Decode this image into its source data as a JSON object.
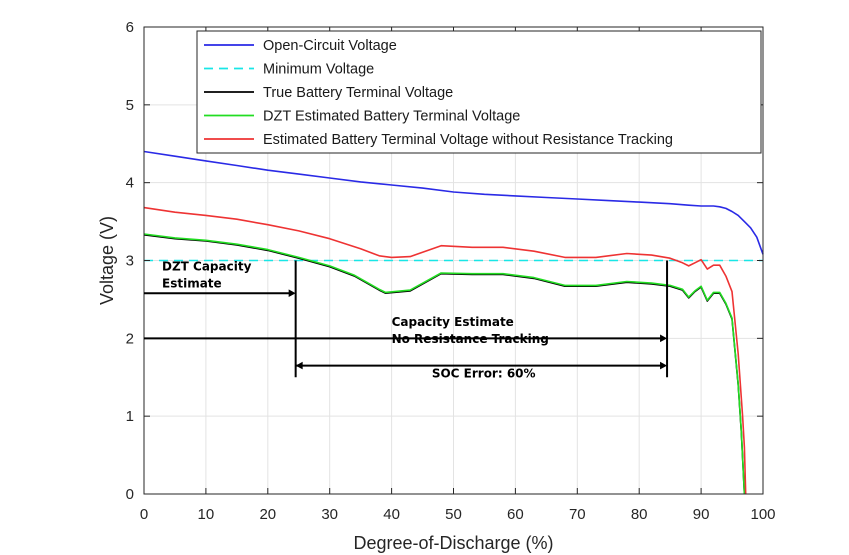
{
  "chart_data": {
    "type": "line",
    "title": "",
    "xlabel": "Degree-of-Discharge (%)",
    "ylabel": "Voltage (V)",
    "xlim": [
      0,
      100
    ],
    "ylim": [
      0,
      6
    ],
    "x_ticks": [
      "0",
      "10",
      "20",
      "30",
      "40",
      "50",
      "60",
      "70",
      "80",
      "90",
      "100"
    ],
    "y_ticks": [
      "0",
      "1",
      "2",
      "3",
      "4",
      "5",
      "6"
    ],
    "grid": true,
    "legend_position": "top-right",
    "series": [
      {
        "name": "Open-Circuit Voltage",
        "color": "#2a2ae6",
        "style": "solid",
        "points": [
          [
            0,
            4.4
          ],
          [
            5,
            4.34
          ],
          [
            10,
            4.28
          ],
          [
            15,
            4.22
          ],
          [
            20,
            4.16
          ],
          [
            25,
            4.11
          ],
          [
            30,
            4.06
          ],
          [
            35,
            4.01
          ],
          [
            40,
            3.97
          ],
          [
            45,
            3.93
          ],
          [
            50,
            3.88
          ],
          [
            55,
            3.85
          ],
          [
            60,
            3.83
          ],
          [
            65,
            3.81
          ],
          [
            70,
            3.79
          ],
          [
            75,
            3.77
          ],
          [
            80,
            3.75
          ],
          [
            85,
            3.73
          ],
          [
            88,
            3.71
          ],
          [
            90,
            3.7
          ],
          [
            92,
            3.7
          ],
          [
            93,
            3.69
          ],
          [
            94,
            3.67
          ],
          [
            95,
            3.63
          ],
          [
            96,
            3.58
          ],
          [
            97,
            3.5
          ],
          [
            98,
            3.42
          ],
          [
            99,
            3.3
          ],
          [
            100,
            3.08
          ]
        ]
      },
      {
        "name": "Minimum Voltage",
        "color": "#19e6e6",
        "style": "dashed",
        "points": [
          [
            0,
            3.0
          ],
          [
            100,
            3.0
          ]
        ]
      },
      {
        "name": "True Battery Terminal Voltage",
        "color": "#000000",
        "style": "solid",
        "points": [
          [
            0,
            3.33
          ],
          [
            5,
            3.28
          ],
          [
            10,
            3.25
          ],
          [
            15,
            3.2
          ],
          [
            20,
            3.13
          ],
          [
            25,
            3.03
          ],
          [
            30,
            2.92
          ],
          [
            34,
            2.8
          ],
          [
            38,
            2.62
          ],
          [
            39,
            2.58
          ],
          [
            43,
            2.61
          ],
          [
            48,
            2.83
          ],
          [
            53,
            2.82
          ],
          [
            58,
            2.82
          ],
          [
            63,
            2.77
          ],
          [
            68,
            2.67
          ],
          [
            73,
            2.67
          ],
          [
            78,
            2.72
          ],
          [
            82,
            2.7
          ],
          [
            85,
            2.67
          ],
          [
            87,
            2.62
          ],
          [
            88,
            2.52
          ],
          [
            89,
            2.6
          ],
          [
            90,
            2.66
          ],
          [
            91,
            2.48
          ],
          [
            92,
            2.58
          ],
          [
            93,
            2.58
          ],
          [
            94,
            2.44
          ],
          [
            95,
            2.25
          ],
          [
            96,
            1.4
          ],
          [
            96.5,
            0.8
          ],
          [
            97,
            0.0
          ]
        ]
      },
      {
        "name": "DZT Estimated Battery Terminal Voltage",
        "color": "#22dd22",
        "style": "solid",
        "points": [
          [
            0,
            3.34
          ],
          [
            5,
            3.29
          ],
          [
            10,
            3.26
          ],
          [
            15,
            3.21
          ],
          [
            20,
            3.14
          ],
          [
            25,
            3.04
          ],
          [
            30,
            2.93
          ],
          [
            34,
            2.81
          ],
          [
            38,
            2.63
          ],
          [
            39,
            2.59
          ],
          [
            43,
            2.62
          ],
          [
            48,
            2.84
          ],
          [
            53,
            2.83
          ],
          [
            58,
            2.83
          ],
          [
            63,
            2.78
          ],
          [
            68,
            2.68
          ],
          [
            73,
            2.68
          ],
          [
            78,
            2.73
          ],
          [
            82,
            2.71
          ],
          [
            85,
            2.68
          ],
          [
            87,
            2.63
          ],
          [
            88,
            2.53
          ],
          [
            89,
            2.61
          ],
          [
            90,
            2.67
          ],
          [
            91,
            2.49
          ],
          [
            92,
            2.59
          ],
          [
            93,
            2.59
          ],
          [
            94,
            2.45
          ],
          [
            95,
            2.26
          ],
          [
            96,
            1.41
          ],
          [
            96.5,
            0.81
          ],
          [
            97,
            0.0
          ]
        ]
      },
      {
        "name": "Estimated Battery Terminal Voltage without Resistance Tracking",
        "color": "#ee3333",
        "style": "solid",
        "points": [
          [
            0,
            3.68
          ],
          [
            5,
            3.62
          ],
          [
            10,
            3.58
          ],
          [
            15,
            3.53
          ],
          [
            20,
            3.46
          ],
          [
            25,
            3.38
          ],
          [
            30,
            3.28
          ],
          [
            35,
            3.15
          ],
          [
            38,
            3.06
          ],
          [
            40,
            3.04
          ],
          [
            43,
            3.05
          ],
          [
            48,
            3.19
          ],
          [
            53,
            3.17
          ],
          [
            58,
            3.17
          ],
          [
            63,
            3.12
          ],
          [
            68,
            3.04
          ],
          [
            73,
            3.04
          ],
          [
            78,
            3.09
          ],
          [
            82,
            3.07
          ],
          [
            85,
            3.03
          ],
          [
            87,
            2.97
          ],
          [
            88,
            2.93
          ],
          [
            89,
            2.97
          ],
          [
            90,
            3.01
          ],
          [
            91,
            2.89
          ],
          [
            92,
            2.94
          ],
          [
            93,
            2.94
          ],
          [
            94,
            2.8
          ],
          [
            95,
            2.6
          ],
          [
            96,
            1.8
          ],
          [
            96.7,
            1.0
          ],
          [
            97,
            0.6
          ],
          [
            97.2,
            0.0
          ]
        ]
      }
    ],
    "annotations": [
      {
        "text_lines": [
          "DZT Capacity",
          "Estimate"
        ],
        "arrow_from_x": 0,
        "arrow_to_x": 24.5,
        "arrow_y": 2.58
      },
      {
        "text_lines": [
          "Capacity Estimate",
          "No Resistance Tracking"
        ],
        "arrow_from_x": 0,
        "arrow_to_x": 84.5,
        "arrow_y": 2.0
      },
      {
        "text_lines": [
          "SOC Error: 60%"
        ],
        "arrow_from_x": 24.5,
        "arrow_to_x": 84.5,
        "arrow_y": 1.65,
        "double_headed": true
      }
    ],
    "vertical_markers": [
      {
        "x": 24.5,
        "y_from": 1.5,
        "y_to": 3.0
      },
      {
        "x": 84.5,
        "y_from": 1.5,
        "y_to": 3.0
      }
    ]
  }
}
